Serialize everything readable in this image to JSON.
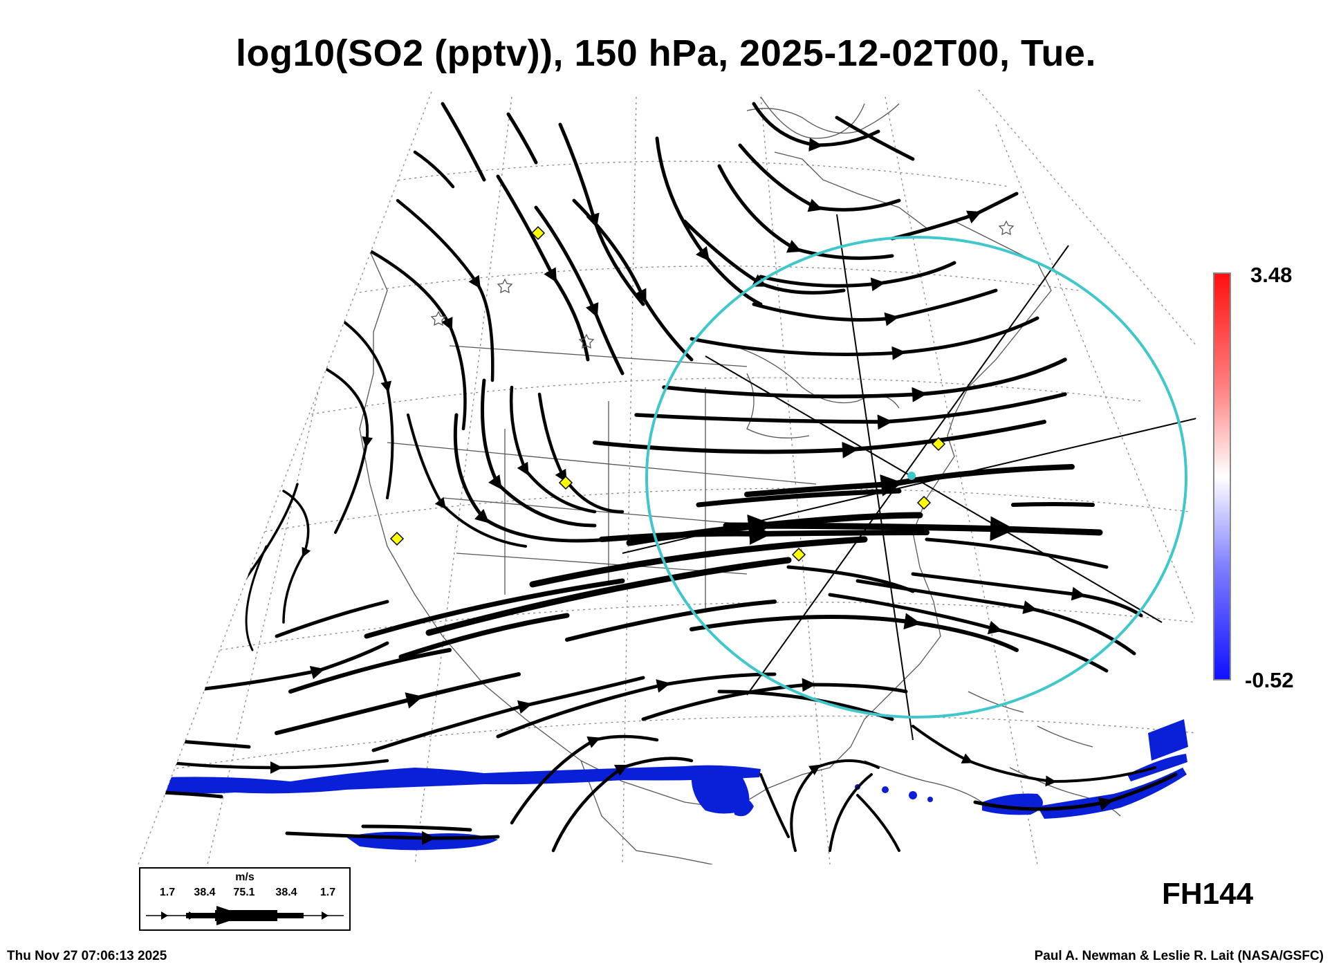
{
  "title": "log10(SO2 (pptv)), 150 hPa, 2025-12-02T00, Tue.",
  "colorbar": {
    "max_label": "3.48",
    "min_label": "-0.52",
    "colors": [
      "#ff1010",
      "#ffffff",
      "#1010ff"
    ]
  },
  "forecast_hour": "FH144",
  "timestamp": "Thu Nov 27 07:06:13 2025",
  "credit": "Paul A. Newman & Leslie R. Lait (NASA/GSFC)",
  "wind_legend": {
    "unit": "m/s",
    "values": [
      "1.7",
      "38.4",
      "75.1",
      "38.4",
      "1.7"
    ]
  },
  "map_colors": {
    "streamlines": "#000000",
    "circle": "#3fc7cc",
    "markers": "#ffff00",
    "so2_low": "#0a1fd8",
    "coast": "#555555",
    "grid": "#888888"
  }
}
